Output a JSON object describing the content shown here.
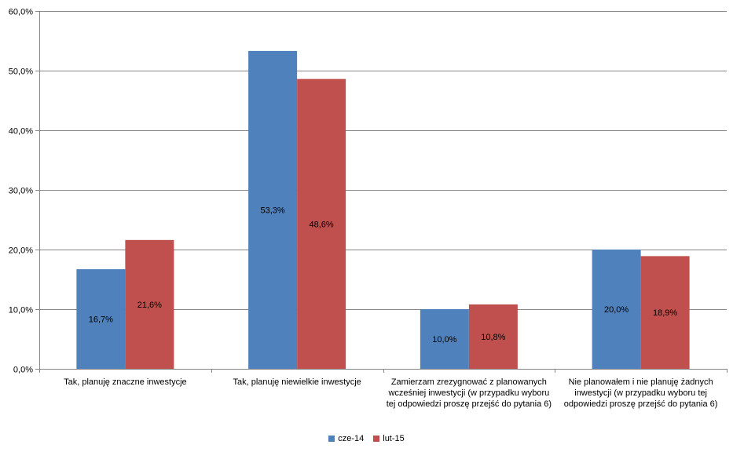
{
  "chart_data": {
    "type": "bar",
    "categories": [
      "Tak, planuję znaczne inwestycje",
      "Tak, planuję niewielkie inwestycje",
      "Zamierzam zrezygnować z planowanych wcześniej inwestycji (w przypadku wyboru tej odpowiedzi proszę przejść do pytania 6)",
      "Nie planowałem i nie planuję żadnych inwestycji (w przypadku wyboru tej odpowiedzi proszę przejść do pytania 6)"
    ],
    "series": [
      {
        "name": "cze-14",
        "values": [
          16.7,
          53.3,
          10.0,
          20.0
        ],
        "labels": [
          "16,7%",
          "53,3%",
          "10,0%",
          "20,0%"
        ],
        "color": "#4F81BD"
      },
      {
        "name": "lut-15",
        "values": [
          21.6,
          48.6,
          10.8,
          18.9
        ],
        "labels": [
          "21,6%",
          "48,6%",
          "10,8%",
          "18,9%"
        ],
        "color": "#C0504D"
      }
    ],
    "ylim": [
      0,
      60
    ],
    "yticks": [
      0,
      10,
      20,
      30,
      40,
      50,
      60
    ],
    "ytick_labels": [
      "0,0%",
      "10,0%",
      "20,0%",
      "30,0%",
      "40,0%",
      "50,0%",
      "60,0%"
    ],
    "grid": true,
    "legend": "bottom",
    "title": "",
    "xlabel": "",
    "ylabel": ""
  }
}
